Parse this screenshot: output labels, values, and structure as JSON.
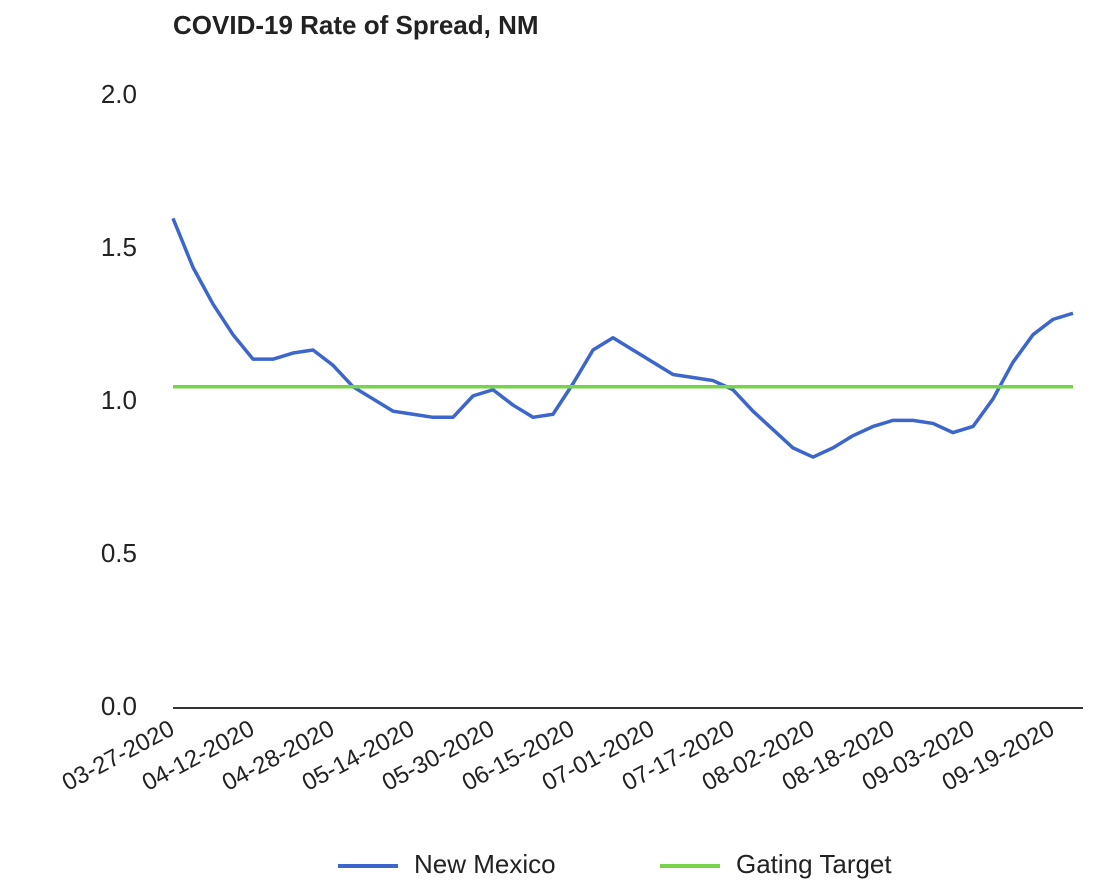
{
  "chart_data": {
    "type": "line",
    "title": "COVID-19 Rate of Spread, NM",
    "x": [
      "03-27-2020",
      "03-31-2020",
      "04-04-2020",
      "04-08-2020",
      "04-12-2020",
      "04-16-2020",
      "04-20-2020",
      "04-24-2020",
      "04-28-2020",
      "05-02-2020",
      "05-06-2020",
      "05-10-2020",
      "05-14-2020",
      "05-18-2020",
      "05-22-2020",
      "05-26-2020",
      "05-30-2020",
      "06-03-2020",
      "06-07-2020",
      "06-11-2020",
      "06-15-2020",
      "06-19-2020",
      "06-23-2020",
      "06-27-2020",
      "07-01-2020",
      "07-05-2020",
      "07-09-2020",
      "07-13-2020",
      "07-17-2020",
      "07-21-2020",
      "07-25-2020",
      "07-29-2020",
      "08-02-2020",
      "08-06-2020",
      "08-10-2020",
      "08-14-2020",
      "08-18-2020",
      "08-22-2020",
      "08-26-2020",
      "08-30-2020",
      "09-03-2020",
      "09-07-2020",
      "09-11-2020",
      "09-15-2020",
      "09-19-2020",
      "09-23-2020"
    ],
    "series": [
      {
        "name": "New Mexico",
        "color": "#3c66cc",
        "values": [
          1.6,
          1.44,
          1.32,
          1.22,
          1.14,
          1.14,
          1.16,
          1.17,
          1.12,
          1.05,
          1.01,
          0.97,
          0.96,
          0.95,
          0.95,
          1.02,
          1.04,
          0.99,
          0.95,
          0.96,
          1.06,
          1.17,
          1.21,
          1.17,
          1.13,
          1.09,
          1.08,
          1.07,
          1.04,
          0.97,
          0.91,
          0.85,
          0.82,
          0.85,
          0.89,
          0.92,
          0.94,
          0.94,
          0.93,
          0.9,
          0.92,
          1.01,
          1.13,
          1.22,
          1.27,
          1.29
        ]
      },
      {
        "name": "Gating Target",
        "color": "#77d44a",
        "values": [
          1.05,
          1.05,
          1.05,
          1.05,
          1.05,
          1.05,
          1.05,
          1.05,
          1.05,
          1.05,
          1.05,
          1.05,
          1.05,
          1.05,
          1.05,
          1.05,
          1.05,
          1.05,
          1.05,
          1.05,
          1.05,
          1.05,
          1.05,
          1.05,
          1.05,
          1.05,
          1.05,
          1.05,
          1.05,
          1.05,
          1.05,
          1.05,
          1.05,
          1.05,
          1.05,
          1.05,
          1.05,
          1.05,
          1.05,
          1.05,
          1.05,
          1.05,
          1.05,
          1.05,
          1.05,
          1.05
        ]
      }
    ],
    "xlim": [
      "03-27-2020",
      "09-23-2020"
    ],
    "xticks": [
      "03-27-2020",
      "04-12-2020",
      "04-28-2020",
      "05-14-2020",
      "05-30-2020",
      "06-15-2020",
      "07-01-2020",
      "07-17-2020",
      "08-02-2020",
      "08-18-2020",
      "09-03-2020",
      "09-19-2020"
    ],
    "ylim": [
      0,
      2
    ],
    "yticks": [
      {
        "value": 0,
        "label": "0.0"
      },
      {
        "value": 0.5,
        "label": "0.5"
      },
      {
        "value": 1,
        "label": "1.0"
      },
      {
        "value": 1.5,
        "label": "1.5"
      },
      {
        "value": 2,
        "label": "2.0"
      }
    ],
    "legend": "bottom"
  }
}
